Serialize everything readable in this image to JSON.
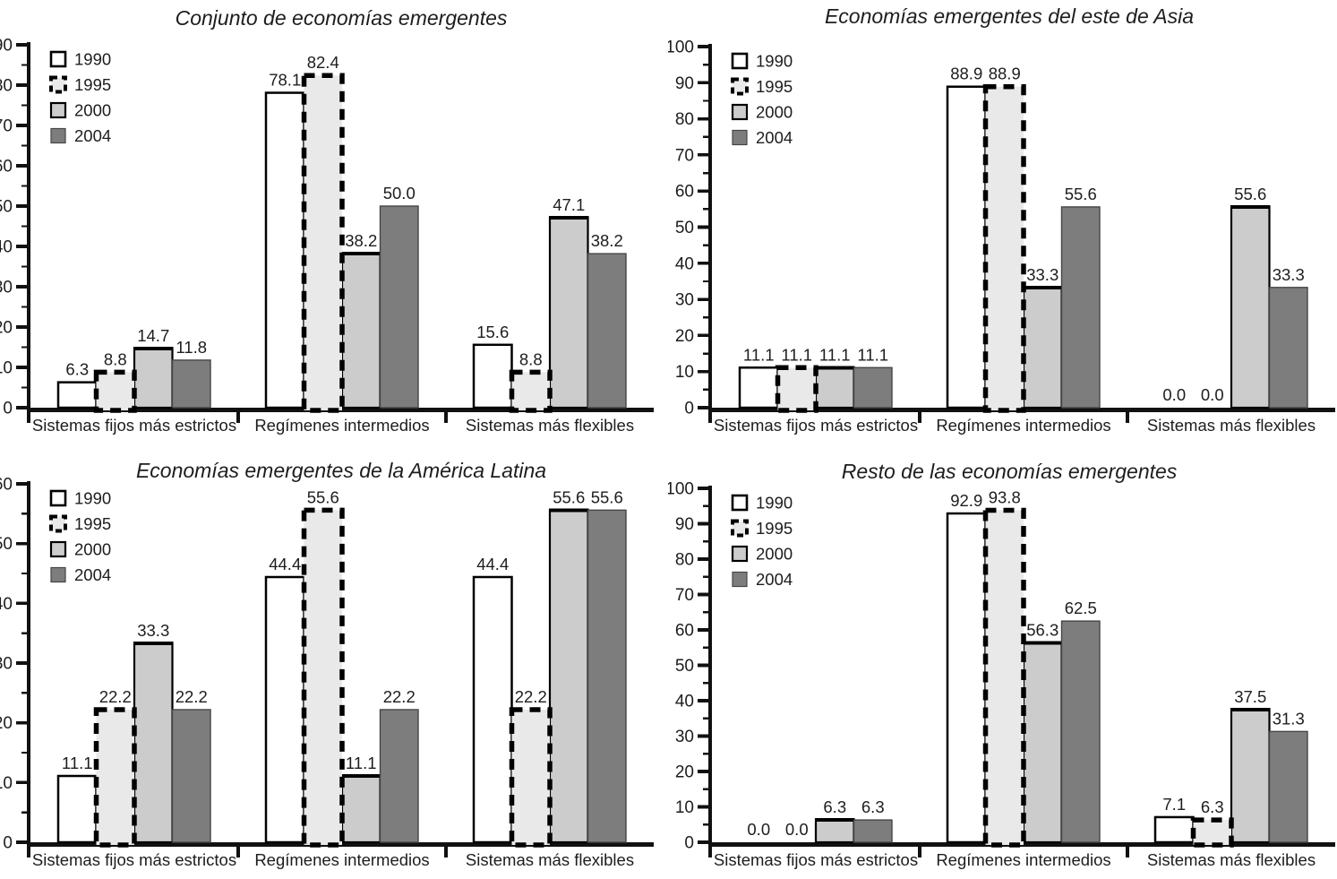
{
  "figure": {
    "language": "es",
    "panel_count": 4
  },
  "shared": {
    "categories": [
      "Sistemas fijos más estrictos",
      "Regímenes intermedios",
      "Sistemas más flexibles"
    ],
    "legend_years": [
      "1990",
      "1995",
      "2000",
      "2004"
    ]
  },
  "series_styles": [
    {
      "name": "1990",
      "fill": "#ffffff",
      "stroke": "#000000",
      "stroke_width": 2.5,
      "dash": null,
      "legend_stroke_width": 2.6,
      "legend_dash": null
    },
    {
      "name": "1995",
      "fill": "#e9e9e9",
      "stroke": "#000000",
      "stroke_width": 5.5,
      "dash": "12 8",
      "legend_stroke_width": 4,
      "legend_dash": "7 5"
    },
    {
      "name": "2000",
      "fill": "#cccccc",
      "stroke": "#000000",
      "stroke_width": 2.2,
      "dash": null,
      "legend_stroke_width": 2.2,
      "legend_dash": null,
      "thick_top": true
    },
    {
      "name": "2004",
      "fill": "#7d7d7d",
      "stroke": "#454545",
      "stroke_width": 1.4,
      "dash": null,
      "legend_stroke_width": 1.2,
      "legend_dash": null
    }
  ],
  "chart_data": [
    {
      "type": "bar",
      "title": "Conjunto de economías emergentes",
      "categories": [
        "Sistemas fijos más estrictos",
        "Regímenes intermedios",
        "Sistemas más flexibles"
      ],
      "series": [
        {
          "name": "1990",
          "values": [
            6.3,
            78.1,
            15.6
          ]
        },
        {
          "name": "1995",
          "values": [
            8.8,
            82.4,
            8.8
          ]
        },
        {
          "name": "2000",
          "values": [
            14.7,
            38.2,
            47.1
          ]
        },
        {
          "name": "2004",
          "values": [
            11.8,
            50.0,
            38.2
          ]
        }
      ],
      "ylim": [
        0,
        90
      ],
      "ytick_step": 10,
      "minor_tick_step": 5,
      "grid": false,
      "legend_position": "top-left",
      "value_label_decimals": 1
    },
    {
      "type": "bar",
      "title": "Economías emergentes del este de Asia",
      "categories": [
        "Sistemas fijos más estrictos",
        "Regímenes intermedios",
        "Sistemas más flexibles"
      ],
      "series": [
        {
          "name": "1990",
          "values": [
            11.1,
            88.9,
            0.0
          ]
        },
        {
          "name": "1995",
          "values": [
            11.1,
            88.9,
            0.0
          ]
        },
        {
          "name": "2000",
          "values": [
            11.1,
            33.3,
            55.6
          ]
        },
        {
          "name": "2004",
          "values": [
            11.1,
            55.6,
            33.3
          ]
        }
      ],
      "ylim": [
        0,
        100
      ],
      "ytick_step": 10,
      "minor_tick_step": 5,
      "grid": false,
      "legend_position": "top-left",
      "value_label_decimals": 1
    },
    {
      "type": "bar",
      "title": "Economías emergentes de la América Latina",
      "categories": [
        "Sistemas fijos más estrictos",
        "Regímenes intermedios",
        "Sistemas más flexibles"
      ],
      "series": [
        {
          "name": "1990",
          "values": [
            11.1,
            44.4,
            44.4
          ]
        },
        {
          "name": "1995",
          "values": [
            22.2,
            55.6,
            22.2
          ]
        },
        {
          "name": "2000",
          "values": [
            33.3,
            11.1,
            55.6
          ]
        },
        {
          "name": "2004",
          "values": [
            22.2,
            22.2,
            55.6
          ]
        }
      ],
      "ylim": [
        0,
        60
      ],
      "ytick_step": 10,
      "minor_tick_step": 5,
      "grid": false,
      "legend_position": "top-left",
      "value_label_decimals": 1
    },
    {
      "type": "bar",
      "title": "Resto de las economías emergentes",
      "categories": [
        "Sistemas fijos más estrictos",
        "Regímenes intermedios",
        "Sistemas más flexibles"
      ],
      "series": [
        {
          "name": "1990",
          "values": [
            0.0,
            92.9,
            7.1
          ]
        },
        {
          "name": "1995",
          "values": [
            0.0,
            93.8,
            6.3
          ]
        },
        {
          "name": "2000",
          "values": [
            6.3,
            56.3,
            37.5
          ]
        },
        {
          "name": "2004",
          "values": [
            6.3,
            62.5,
            31.3
          ]
        }
      ],
      "ylim": [
        0,
        100
      ],
      "ytick_step": 10,
      "minor_tick_step": 5,
      "grid": false,
      "legend_position": "top-left",
      "value_label_decimals": 1
    }
  ],
  "colors": {
    "text": "#1d1d1d",
    "axis": "#111111",
    "background": "#ffffff"
  }
}
